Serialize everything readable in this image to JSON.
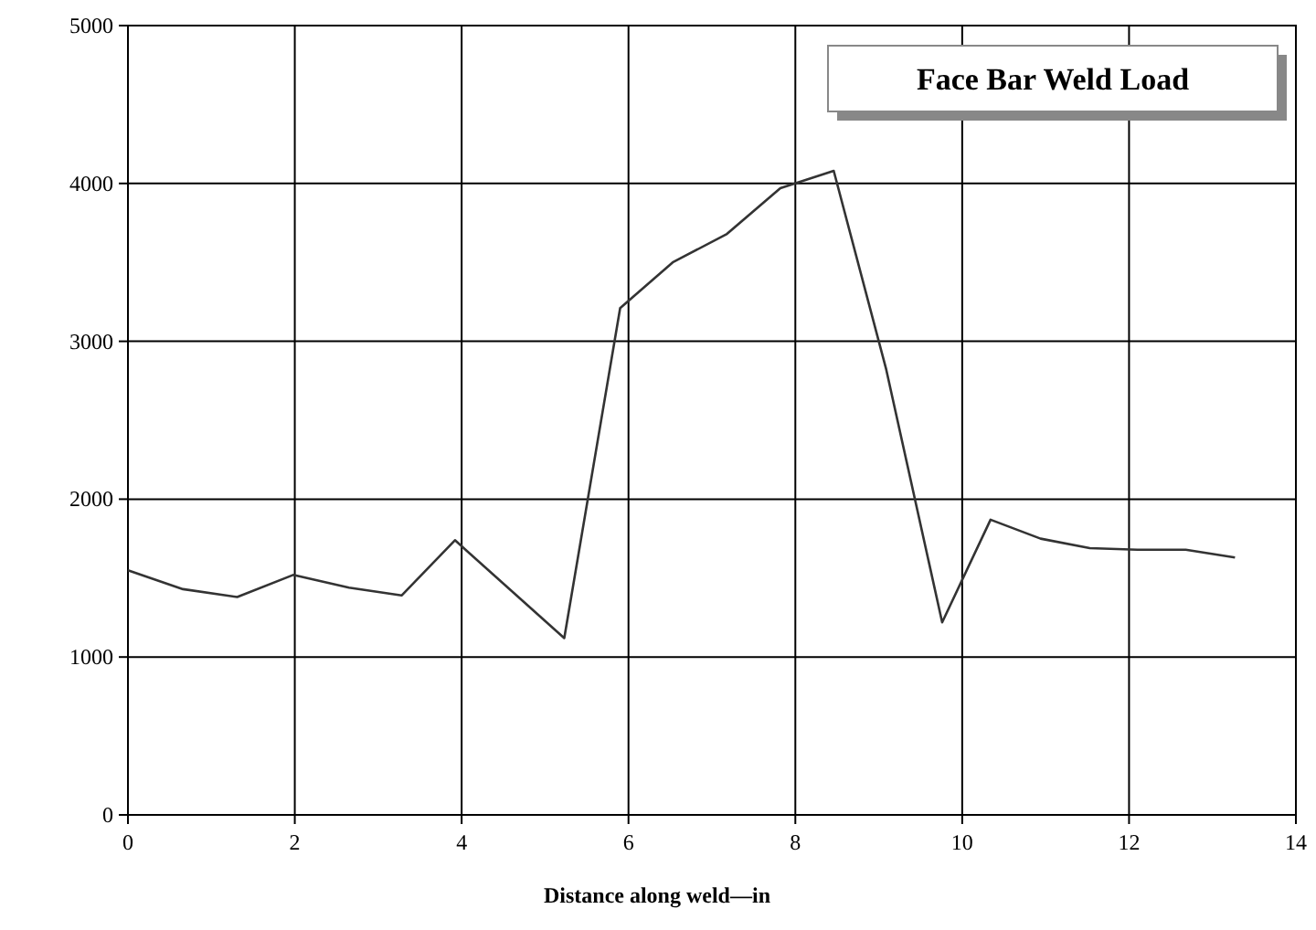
{
  "chart_data": {
    "type": "line",
    "title": "Face Bar Weld Load",
    "xlabel": "Distance along weld—in",
    "x": [
      0,
      0.66,
      1.31,
      1.98,
      2.65,
      3.28,
      3.92,
      5.23,
      5.9,
      6.53,
      7.18,
      7.82,
      8.46,
      9.09,
      9.76,
      10.34,
      10.94,
      11.53,
      12.1,
      12.68,
      13.27
    ],
    "series": [
      {
        "color": "#333333",
        "values": [
          1550,
          1430,
          1380,
          1520,
          1440,
          1390,
          1740,
          1120,
          3210,
          3500,
          3680,
          3970,
          4080,
          2820,
          1220,
          1870,
          1750,
          1690,
          1680,
          1680,
          1630
        ]
      }
    ],
    "xlim": [
      0,
      14
    ],
    "xticks": [
      0,
      2,
      4,
      6,
      8,
      10,
      12,
      14
    ],
    "ylim": [
      0,
      5000
    ],
    "yticks": [
      0,
      1000,
      2000,
      3000,
      4000,
      5000
    ],
    "grid": true,
    "marker": "none",
    "line_style": "solid"
  }
}
